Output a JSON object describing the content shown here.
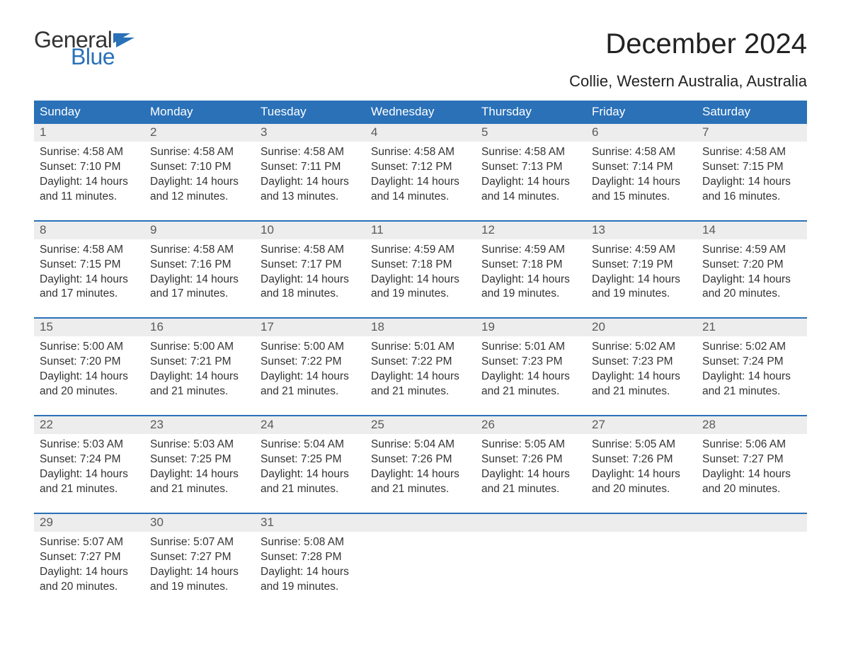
{
  "brand": {
    "word1": "General",
    "word2": "Blue",
    "accent_color": "#2a71b8"
  },
  "title": "December 2024",
  "subtitle": "Collie, Western Australia, Australia",
  "colors": {
    "header_bg": "#2a71b8",
    "header_text": "#ffffff",
    "band_bg": "#ededed",
    "band_text": "#5a5a5a",
    "body_text": "#333333",
    "page_bg": "#ffffff",
    "week_rule": "#2a71b8"
  },
  "fontsize": {
    "title": 40,
    "subtitle": 22,
    "day_header": 17,
    "daynum": 17,
    "body": 15.5
  },
  "day_headers": [
    "Sunday",
    "Monday",
    "Tuesday",
    "Wednesday",
    "Thursday",
    "Friday",
    "Saturday"
  ],
  "weeks": [
    [
      {
        "n": "1",
        "sunrise": "Sunrise: 4:58 AM",
        "sunset": "Sunset: 7:10 PM",
        "dl1": "Daylight: 14 hours",
        "dl2": "and 11 minutes."
      },
      {
        "n": "2",
        "sunrise": "Sunrise: 4:58 AM",
        "sunset": "Sunset: 7:10 PM",
        "dl1": "Daylight: 14 hours",
        "dl2": "and 12 minutes."
      },
      {
        "n": "3",
        "sunrise": "Sunrise: 4:58 AM",
        "sunset": "Sunset: 7:11 PM",
        "dl1": "Daylight: 14 hours",
        "dl2": "and 13 minutes."
      },
      {
        "n": "4",
        "sunrise": "Sunrise: 4:58 AM",
        "sunset": "Sunset: 7:12 PM",
        "dl1": "Daylight: 14 hours",
        "dl2": "and 14 minutes."
      },
      {
        "n": "5",
        "sunrise": "Sunrise: 4:58 AM",
        "sunset": "Sunset: 7:13 PM",
        "dl1": "Daylight: 14 hours",
        "dl2": "and 14 minutes."
      },
      {
        "n": "6",
        "sunrise": "Sunrise: 4:58 AM",
        "sunset": "Sunset: 7:14 PM",
        "dl1": "Daylight: 14 hours",
        "dl2": "and 15 minutes."
      },
      {
        "n": "7",
        "sunrise": "Sunrise: 4:58 AM",
        "sunset": "Sunset: 7:15 PM",
        "dl1": "Daylight: 14 hours",
        "dl2": "and 16 minutes."
      }
    ],
    [
      {
        "n": "8",
        "sunrise": "Sunrise: 4:58 AM",
        "sunset": "Sunset: 7:15 PM",
        "dl1": "Daylight: 14 hours",
        "dl2": "and 17 minutes."
      },
      {
        "n": "9",
        "sunrise": "Sunrise: 4:58 AM",
        "sunset": "Sunset: 7:16 PM",
        "dl1": "Daylight: 14 hours",
        "dl2": "and 17 minutes."
      },
      {
        "n": "10",
        "sunrise": "Sunrise: 4:58 AM",
        "sunset": "Sunset: 7:17 PM",
        "dl1": "Daylight: 14 hours",
        "dl2": "and 18 minutes."
      },
      {
        "n": "11",
        "sunrise": "Sunrise: 4:59 AM",
        "sunset": "Sunset: 7:18 PM",
        "dl1": "Daylight: 14 hours",
        "dl2": "and 19 minutes."
      },
      {
        "n": "12",
        "sunrise": "Sunrise: 4:59 AM",
        "sunset": "Sunset: 7:18 PM",
        "dl1": "Daylight: 14 hours",
        "dl2": "and 19 minutes."
      },
      {
        "n": "13",
        "sunrise": "Sunrise: 4:59 AM",
        "sunset": "Sunset: 7:19 PM",
        "dl1": "Daylight: 14 hours",
        "dl2": "and 19 minutes."
      },
      {
        "n": "14",
        "sunrise": "Sunrise: 4:59 AM",
        "sunset": "Sunset: 7:20 PM",
        "dl1": "Daylight: 14 hours",
        "dl2": "and 20 minutes."
      }
    ],
    [
      {
        "n": "15",
        "sunrise": "Sunrise: 5:00 AM",
        "sunset": "Sunset: 7:20 PM",
        "dl1": "Daylight: 14 hours",
        "dl2": "and 20 minutes."
      },
      {
        "n": "16",
        "sunrise": "Sunrise: 5:00 AM",
        "sunset": "Sunset: 7:21 PM",
        "dl1": "Daylight: 14 hours",
        "dl2": "and 21 minutes."
      },
      {
        "n": "17",
        "sunrise": "Sunrise: 5:00 AM",
        "sunset": "Sunset: 7:22 PM",
        "dl1": "Daylight: 14 hours",
        "dl2": "and 21 minutes."
      },
      {
        "n": "18",
        "sunrise": "Sunrise: 5:01 AM",
        "sunset": "Sunset: 7:22 PM",
        "dl1": "Daylight: 14 hours",
        "dl2": "and 21 minutes."
      },
      {
        "n": "19",
        "sunrise": "Sunrise: 5:01 AM",
        "sunset": "Sunset: 7:23 PM",
        "dl1": "Daylight: 14 hours",
        "dl2": "and 21 minutes."
      },
      {
        "n": "20",
        "sunrise": "Sunrise: 5:02 AM",
        "sunset": "Sunset: 7:23 PM",
        "dl1": "Daylight: 14 hours",
        "dl2": "and 21 minutes."
      },
      {
        "n": "21",
        "sunrise": "Sunrise: 5:02 AM",
        "sunset": "Sunset: 7:24 PM",
        "dl1": "Daylight: 14 hours",
        "dl2": "and 21 minutes."
      }
    ],
    [
      {
        "n": "22",
        "sunrise": "Sunrise: 5:03 AM",
        "sunset": "Sunset: 7:24 PM",
        "dl1": "Daylight: 14 hours",
        "dl2": "and 21 minutes."
      },
      {
        "n": "23",
        "sunrise": "Sunrise: 5:03 AM",
        "sunset": "Sunset: 7:25 PM",
        "dl1": "Daylight: 14 hours",
        "dl2": "and 21 minutes."
      },
      {
        "n": "24",
        "sunrise": "Sunrise: 5:04 AM",
        "sunset": "Sunset: 7:25 PM",
        "dl1": "Daylight: 14 hours",
        "dl2": "and 21 minutes."
      },
      {
        "n": "25",
        "sunrise": "Sunrise: 5:04 AM",
        "sunset": "Sunset: 7:26 PM",
        "dl1": "Daylight: 14 hours",
        "dl2": "and 21 minutes."
      },
      {
        "n": "26",
        "sunrise": "Sunrise: 5:05 AM",
        "sunset": "Sunset: 7:26 PM",
        "dl1": "Daylight: 14 hours",
        "dl2": "and 21 minutes."
      },
      {
        "n": "27",
        "sunrise": "Sunrise: 5:05 AM",
        "sunset": "Sunset: 7:26 PM",
        "dl1": "Daylight: 14 hours",
        "dl2": "and 20 minutes."
      },
      {
        "n": "28",
        "sunrise": "Sunrise: 5:06 AM",
        "sunset": "Sunset: 7:27 PM",
        "dl1": "Daylight: 14 hours",
        "dl2": "and 20 minutes."
      }
    ],
    [
      {
        "n": "29",
        "sunrise": "Sunrise: 5:07 AM",
        "sunset": "Sunset: 7:27 PM",
        "dl1": "Daylight: 14 hours",
        "dl2": "and 20 minutes."
      },
      {
        "n": "30",
        "sunrise": "Sunrise: 5:07 AM",
        "sunset": "Sunset: 7:27 PM",
        "dl1": "Daylight: 14 hours",
        "dl2": "and 19 minutes."
      },
      {
        "n": "31",
        "sunrise": "Sunrise: 5:08 AM",
        "sunset": "Sunset: 7:28 PM",
        "dl1": "Daylight: 14 hours",
        "dl2": "and 19 minutes."
      },
      {
        "empty": true
      },
      {
        "empty": true
      },
      {
        "empty": true
      },
      {
        "empty": true
      }
    ]
  ]
}
